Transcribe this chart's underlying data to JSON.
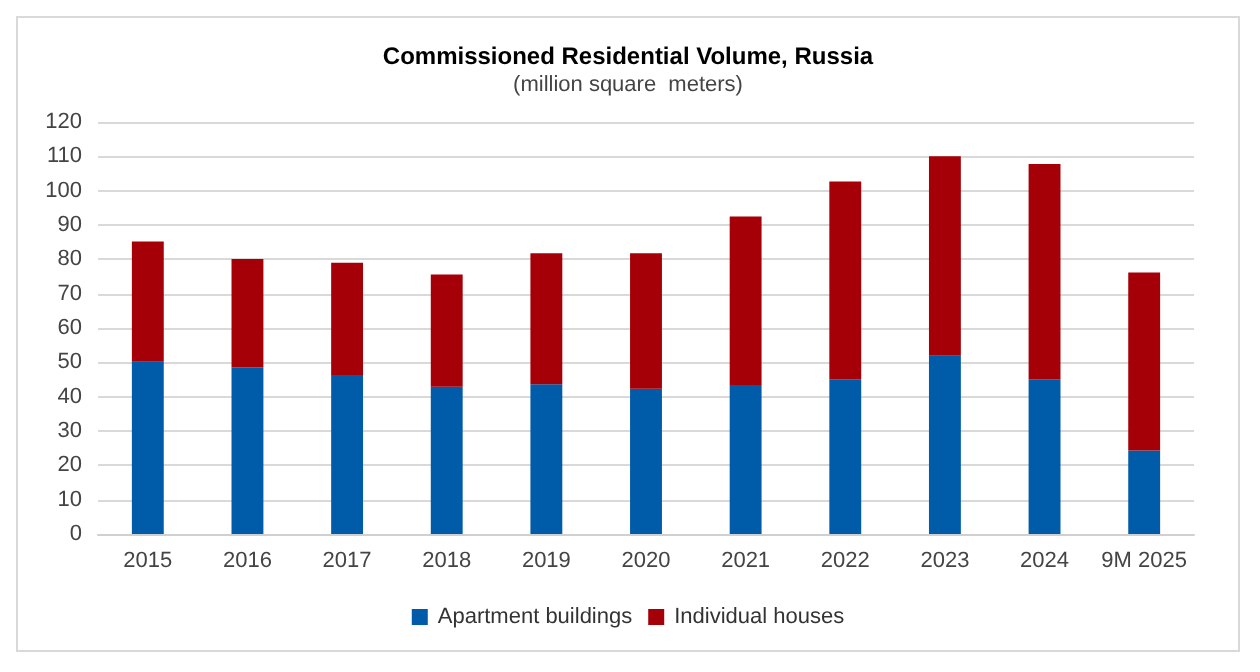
{
  "chart_data": {
    "type": "bar",
    "title": "Commissioned Residential Volume, Russia",
    "subtitle": "(million square  meters)",
    "categories": [
      "2015",
      "2016",
      "2017",
      "2018",
      "2019",
      "2020",
      "2021",
      "2022",
      "2023",
      "2024",
      "9M 2025"
    ],
    "stacked": true,
    "series": [
      {
        "name": "Apartment buildings",
        "color": "#005ca8",
        "values": [
          50.2,
          48.5,
          46.3,
          42.9,
          43.6,
          42.3,
          43.4,
          45.1,
          51.9,
          45.1,
          24.3
        ]
      },
      {
        "name": "Individual houses",
        "color": "#a50008",
        "values": [
          35.0,
          31.6,
          32.7,
          32.7,
          38.2,
          39.5,
          49.1,
          57.6,
          58.1,
          62.7,
          51.9
        ]
      }
    ],
    "ylim": [
      0,
      120
    ],
    "yticks": [
      0,
      10,
      20,
      30,
      40,
      50,
      60,
      70,
      80,
      90,
      100,
      110,
      120
    ],
    "grid": "y",
    "legend": "bottom"
  }
}
